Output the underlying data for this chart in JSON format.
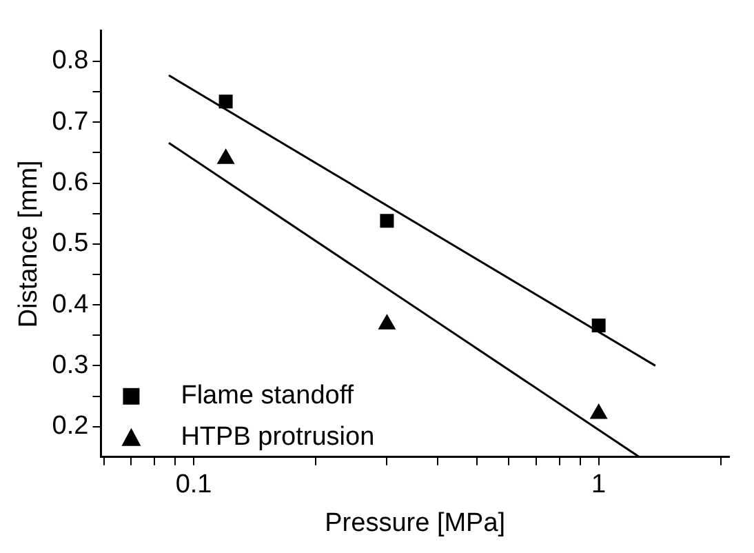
{
  "chart_data": {
    "type": "scatter",
    "xlabel": "Pressure [MPa]",
    "ylabel": "Distance [mm]",
    "log": "x",
    "xlim": [
      0.059,
      2.1
    ],
    "ylim": [
      0.15,
      0.85
    ],
    "xticks": [
      {
        "value": 0.06,
        "label": null
      },
      {
        "value": 0.07,
        "label": null
      },
      {
        "value": 0.08,
        "label": null
      },
      {
        "value": 0.09,
        "label": null
      },
      0.1,
      {
        "value": 0.2,
        "label": null
      },
      {
        "value": 0.3,
        "label": null
      },
      {
        "value": 0.4,
        "label": null
      },
      {
        "value": 0.5,
        "label": null
      },
      {
        "value": 0.6,
        "label": null
      },
      {
        "value": 0.7,
        "label": null
      },
      {
        "value": 0.8,
        "label": null
      },
      {
        "value": 0.9,
        "label": null
      },
      1,
      {
        "value": 2,
        "label": null
      }
    ],
    "yticks": [
      0.2,
      {
        "value": 0.25,
        "label": null
      },
      0.3,
      {
        "value": 0.35,
        "label": null
      },
      0.4,
      {
        "value": 0.45,
        "label": null
      },
      0.5,
      {
        "value": 0.55,
        "label": null
      },
      0.6,
      {
        "value": 0.65,
        "label": null
      },
      0.7,
      {
        "value": 0.75,
        "label": null
      },
      0.8
    ],
    "grid": false,
    "legend": "bottom left",
    "series": [
      {
        "name": "Flame standoff",
        "color": "#000000",
        "marker": "square",
        "x": [
          0.12,
          0.3,
          1.0
        ],
        "values": [
          0.734,
          0.538,
          0.366
        ]
      },
      {
        "name": "HTPB protrusion",
        "color": "#000000",
        "marker": "triangle",
        "x": [
          0.12,
          0.3,
          1.0
        ],
        "values": [
          0.64,
          0.368,
          0.221
        ]
      },
      {
        "type": "line",
        "color": "#000000",
        "marker": "none",
        "line_style": "solid",
        "x": [
          0.0868,
          1.38
        ],
        "values": [
          0.777,
          0.3
        ]
      },
      {
        "type": "line",
        "color": "#000000",
        "marker": "none",
        "line_style": "solid",
        "x": [
          0.0868,
          1.26
        ],
        "values": [
          0.666,
          0.15
        ]
      }
    ]
  }
}
